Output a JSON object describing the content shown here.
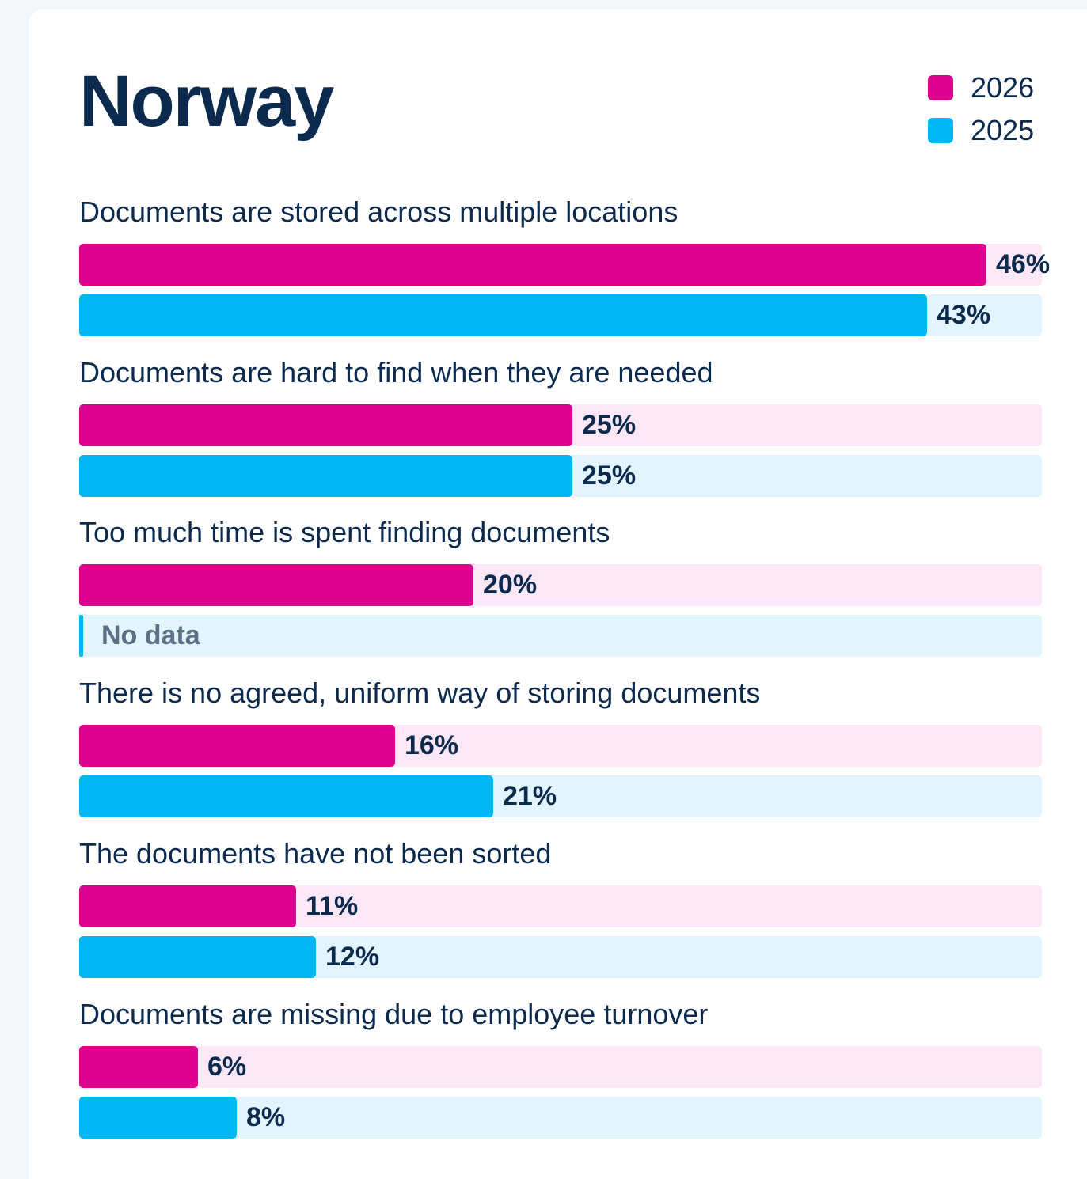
{
  "colors": {
    "2026": "#e0008e",
    "2025": "#00b6f3",
    "text": "#0c2a4d"
  },
  "chart_data": {
    "type": "bar",
    "orientation": "horizontal",
    "title": "Norway",
    "legend": {
      "placement": "top-right",
      "entries": [
        "2026",
        "2025"
      ]
    },
    "xlim": [
      0,
      50
    ],
    "unit": "%",
    "categories": [
      "Documents are stored across multiple locations",
      "Documents are hard to find when they are needed",
      "Too much time is spent finding documents",
      "There is no agreed, uniform way of storing documents",
      "The documents have not been sorted",
      "Documents are missing due to employee turnover"
    ],
    "series": [
      {
        "name": "2026",
        "values": [
          46,
          25,
          20,
          16,
          11,
          6
        ],
        "labels": [
          "46%",
          "25%",
          "20%",
          "16%",
          "11%",
          "6%"
        ]
      },
      {
        "name": "2025",
        "values": [
          43,
          25,
          null,
          21,
          12,
          8
        ],
        "labels": [
          "43%",
          "25%",
          "No data",
          "21%",
          "12%",
          "8%"
        ]
      }
    ]
  }
}
